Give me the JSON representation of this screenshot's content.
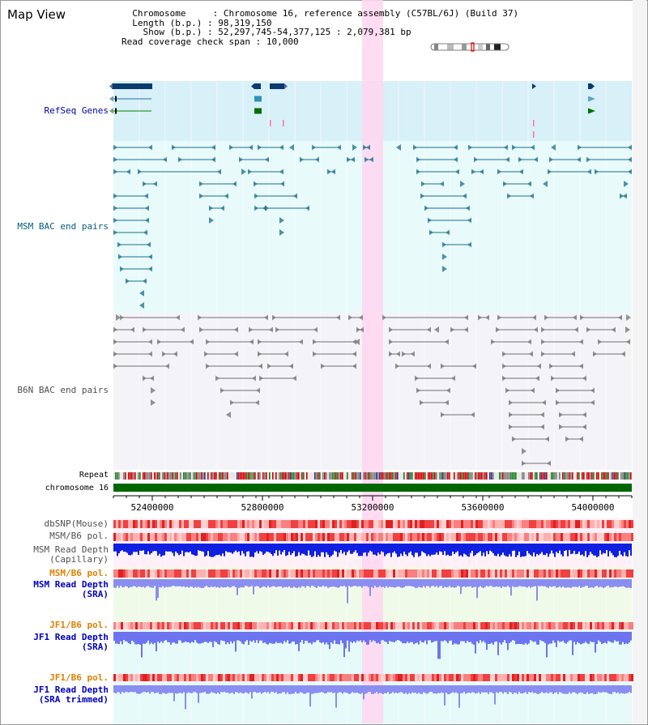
{
  "title": "Map View",
  "info": {
    "chromosome_key": "Chromosome",
    "chromosome_val": "Chromosome 16, reference assembly (C57BL/6J) (Build 37)",
    "length_key": "Length (b.p.)",
    "length_val": "98,319,150",
    "show_key": "Show (b.p.)",
    "show_val": "52,297,745-54,377,125 : 2,079,381 bp",
    "span_key": "Read coverage check span",
    "span_val": "10,000"
  },
  "tracks": {
    "refseq": "RefSeq Genes",
    "msm_bac": "MSM BAC end pairs",
    "b6n_bac": "B6N BAC end pairs",
    "repeat": "Repeat",
    "chromosome": "chromosome 16",
    "dbsnp": "dbSNP(Mouse)",
    "msm_b6_pol": "MSM/B6 pol.",
    "msm_depth_cap": "MSM Read Depth",
    "msm_depth_cap_sub": "(Capillary)",
    "msm_b6_pol2": "MSM/B6 pol.",
    "msm_depth_sra": "MSM Read Depth",
    "msm_depth_sra_sub": "(SRA)",
    "jf1_pol": "JF1/B6 pol.",
    "jf1_depth_sra": "JF1 Read Depth",
    "jf1_depth_sra_sub": "(SRA)",
    "jf1_pol2": "JF1/B6 pol.",
    "jf1_depth_trim": "JF1 Read Depth",
    "jf1_depth_trim_sub": "(SRA trimmed)"
  },
  "axis": {
    "ticks": [
      "52400000",
      "52800000",
      "53200000",
      "53600000",
      "54000000"
    ]
  },
  "colors": {
    "refseq_label": "#0000a0",
    "msm_label": "#006080",
    "b6n_label": "#505050",
    "orange_label": "#e08000",
    "blue_label": "#0000c0",
    "highlight": "#ffd6f0"
  }
}
